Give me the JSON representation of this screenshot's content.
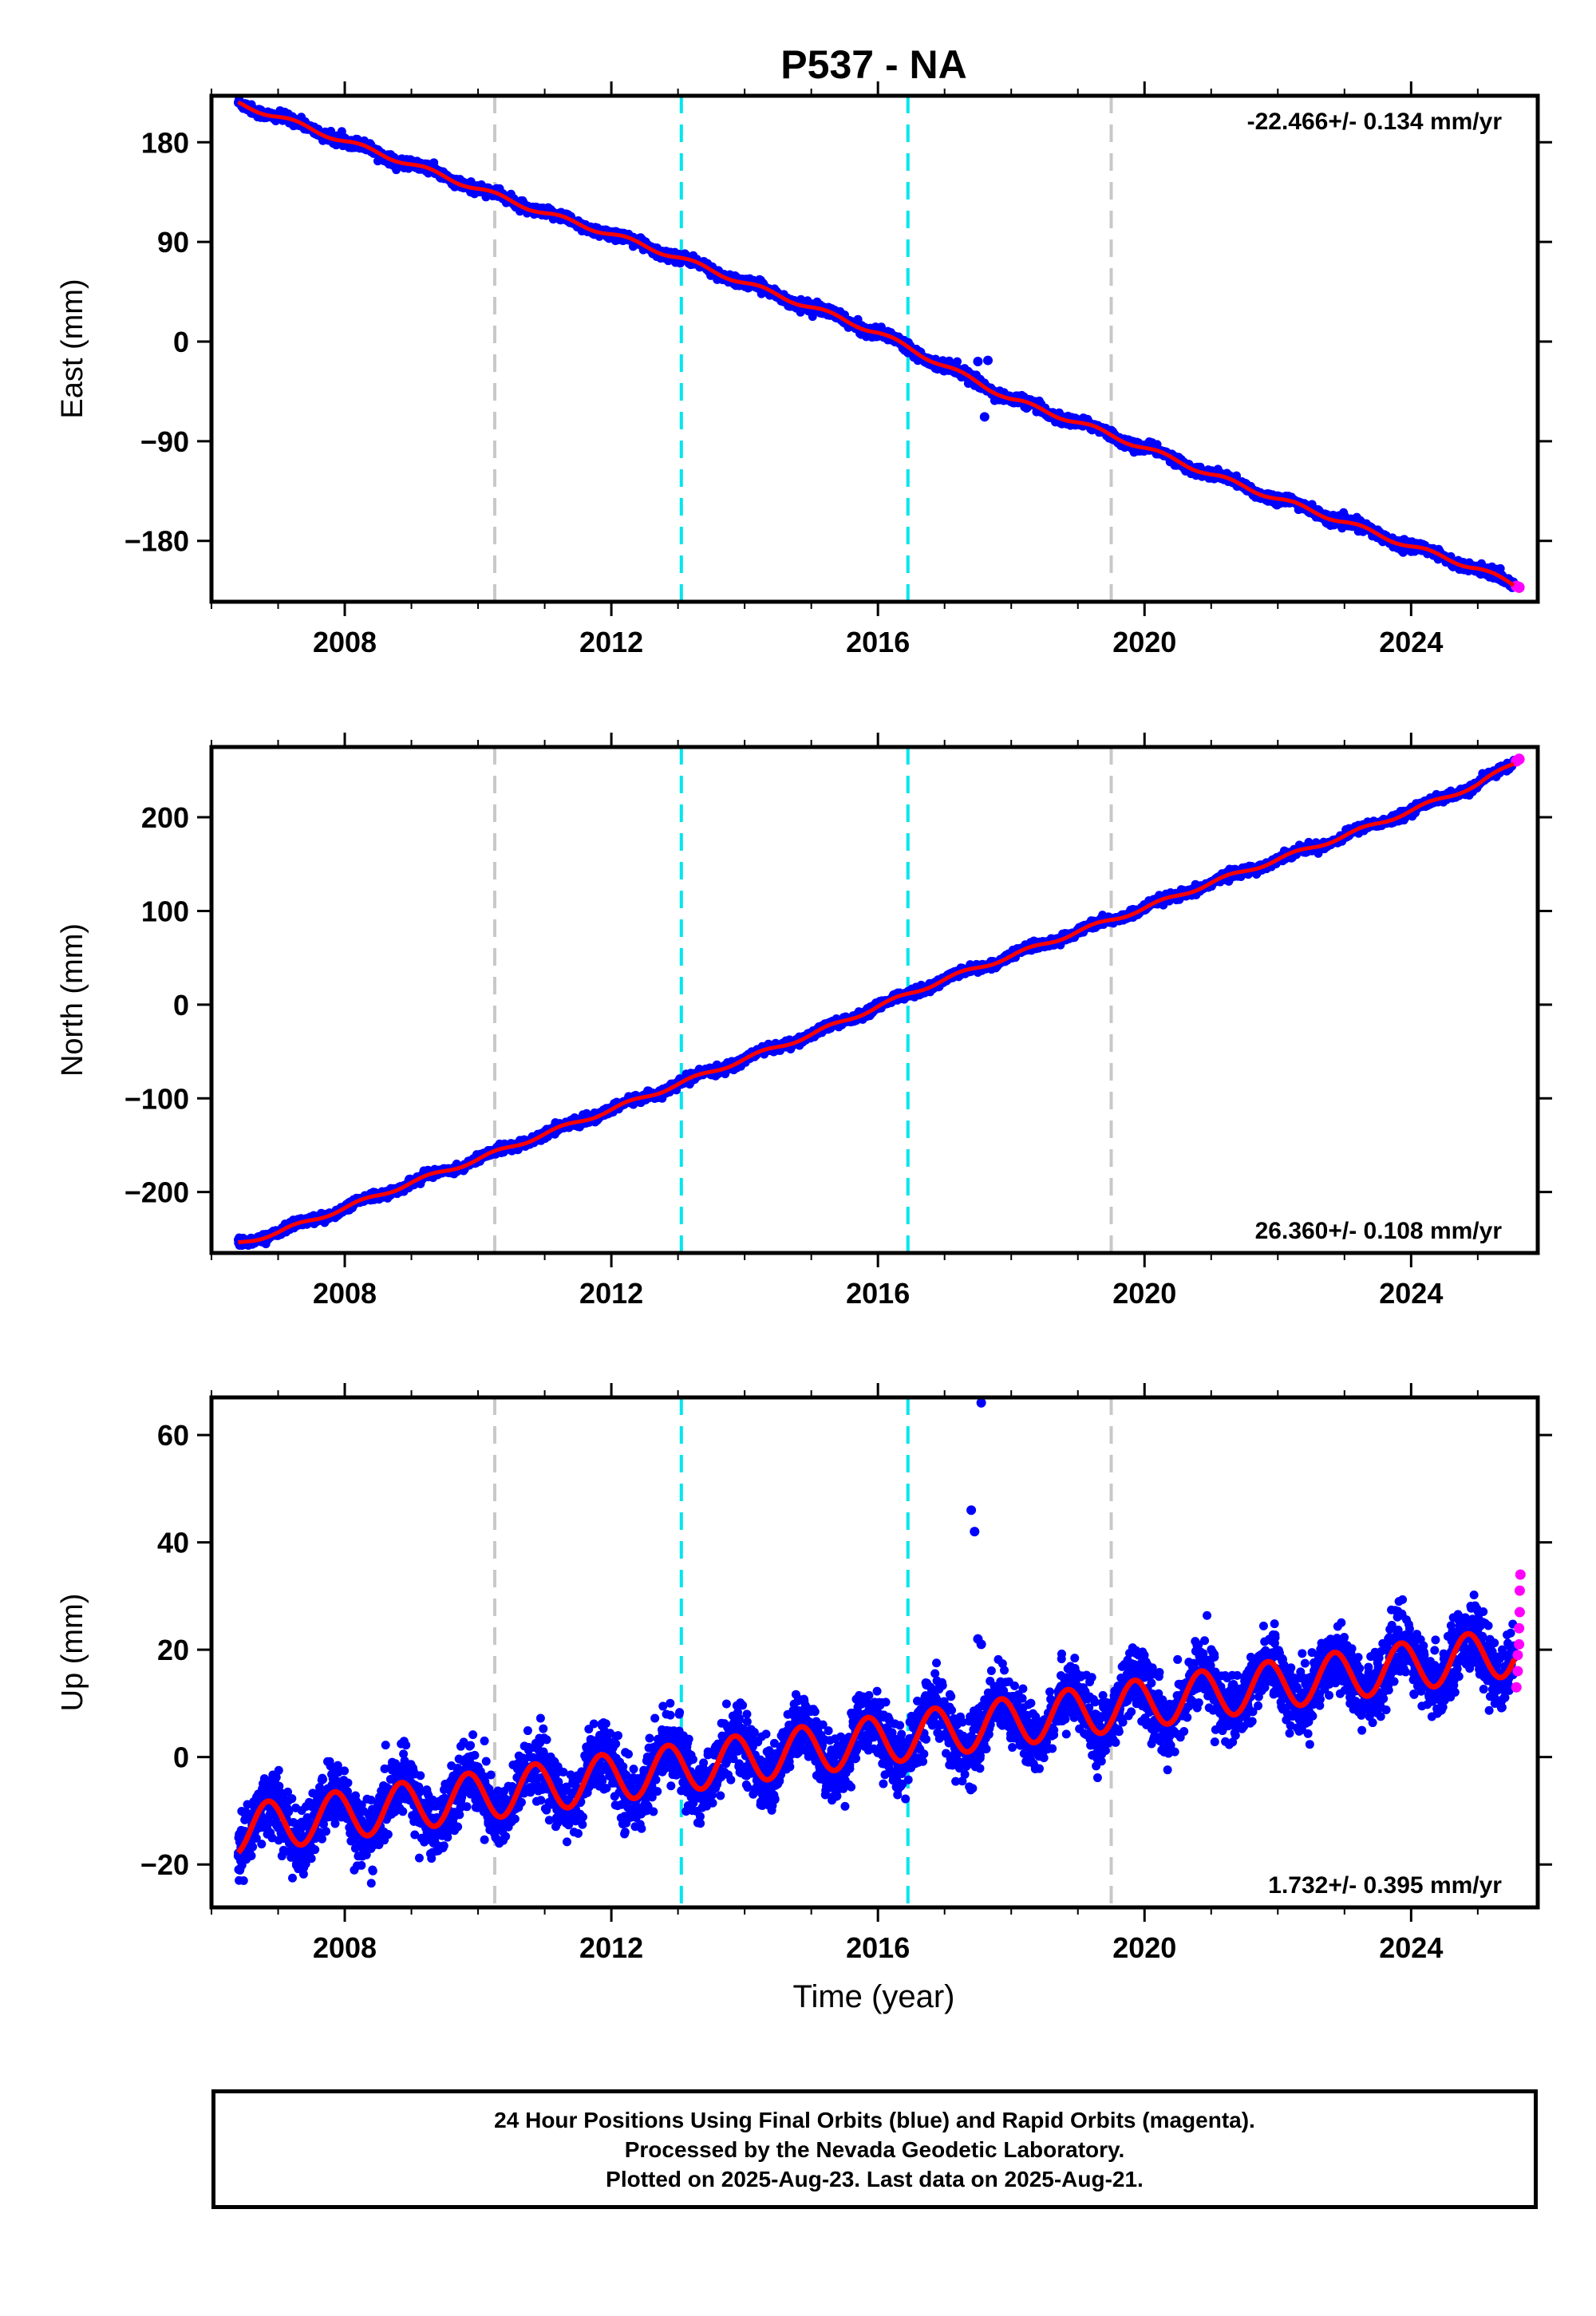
{
  "chart_data": {
    "type": "scatter",
    "title": "P537 - NA",
    "xlabel": "Time (year)",
    "xlim": [
      2006.0,
      2025.9
    ],
    "xticks": [
      2008,
      2012,
      2016,
      2020,
      2024
    ],
    "event_lines": [
      {
        "x": 2010.25,
        "color": "#c8c8c8"
      },
      {
        "x": 2013.05,
        "color": "#00e5ee"
      },
      {
        "x": 2016.45,
        "color": "#00e5ee"
      },
      {
        "x": 2019.5,
        "color": "#c8c8c8"
      }
    ],
    "colors": {
      "final": "#0000ff",
      "rapid": "#ff00ff",
      "model": "#ff0000"
    },
    "panels": [
      {
        "component": "east",
        "ylabel": "East (mm)",
        "ylim": [
          -235,
          222
        ],
        "yticks": [
          180,
          90,
          0,
          -90,
          -180
        ],
        "ytick_labels": [
          "180",
          "90",
          "0",
          "−90",
          "−180"
        ],
        "velocity_label": "-22.466+/- 0.134 mm/yr",
        "velocity_position": "top-right",
        "series": [
          {
            "name": "final",
            "x": [
              2006.4,
              2007,
              2008,
              2009,
              2010,
              2011,
              2012,
              2013,
              2014,
              2015,
              2016,
              2017,
              2018,
              2019,
              2020,
              2021,
              2022,
              2023,
              2024,
              2025,
              2025.55
            ],
            "y": [
              215,
              203,
              181,
              160,
              138,
              116,
              97,
              76,
              53,
              31,
              8,
              -22,
              -52,
              -73,
              -96,
              -120,
              -142,
              -163,
              -185,
              -205,
              -220
            ]
          },
          {
            "name": "rapid",
            "x": [
              2025.58,
              2025.62
            ],
            "y": [
              -221,
              -222
            ]
          }
        ],
        "outliers": [
          {
            "x": 2017.5,
            "y": -18
          },
          {
            "x": 2017.65,
            "y": -17
          },
          {
            "x": 2017.6,
            "y": -68
          }
        ]
      },
      {
        "component": "north",
        "ylabel": "North (mm)",
        "ylim": [
          -265,
          275
        ],
        "yticks": [
          200,
          100,
          0,
          -100,
          -200
        ],
        "ytick_labels": [
          "200",
          "100",
          "0",
          "−100",
          "−200"
        ],
        "velocity_label": "26.360+/- 0.108 mm/yr",
        "velocity_position": "bottom-right",
        "series": [
          {
            "name": "final",
            "x": [
              2006.4,
              2007,
              2008,
              2009,
              2010,
              2011,
              2012,
              2013,
              2014,
              2015,
              2016,
              2017,
              2018,
              2019,
              2020,
              2021,
              2022,
              2023,
              2024,
              2025,
              2025.55
            ],
            "y": [
              -255,
              -243,
              -217,
              -190,
              -165,
              -138,
              -112,
              -85,
              -58,
              -32,
              -2,
              27,
              52,
              78,
              103,
              130,
              155,
              180,
              207,
              235,
              258
            ]
          },
          {
            "name": "rapid",
            "x": [
              2025.58,
              2025.62
            ],
            "y": [
              260,
              262
            ]
          }
        ],
        "outliers": []
      },
      {
        "component": "up",
        "ylabel": "Up (mm)",
        "ylim": [
          -28,
          67
        ],
        "yticks": [
          60,
          40,
          20,
          0,
          -20
        ],
        "ytick_labels": [
          "60",
          "40",
          "20",
          "0",
          "−20"
        ],
        "velocity_label": "1.732+/- 0.395 mm/yr",
        "velocity_position": "bottom-right",
        "trend": {
          "x0": 2006.4,
          "y0": -13.5,
          "rate": 1.732,
          "amplitude": 4.5,
          "phase_year": 0.1
        },
        "model_curve_x": [
          2006.4,
          2025.55
        ],
        "scatter_spread": 5.5,
        "rapid_points": [
          {
            "x": 2025.58,
            "y": 13
          },
          {
            "x": 2025.6,
            "y": 16
          },
          {
            "x": 2025.6,
            "y": 19
          },
          {
            "x": 2025.62,
            "y": 21
          },
          {
            "x": 2025.62,
            "y": 24
          },
          {
            "x": 2025.63,
            "y": 27
          },
          {
            "x": 2025.63,
            "y": 31
          },
          {
            "x": 2025.64,
            "y": 34
          }
        ],
        "outliers": [
          {
            "x": 2017.55,
            "y": 66
          },
          {
            "x": 2017.4,
            "y": 46
          },
          {
            "x": 2017.45,
            "y": 42
          },
          {
            "x": 2017.5,
            "y": 22
          },
          {
            "x": 2017.55,
            "y": 21
          }
        ]
      }
    ]
  },
  "footer": {
    "line1": "24 Hour Positions Using Final Orbits (blue) and Rapid Orbits (magenta).",
    "line2": "Processed by the Nevada Geodetic Laboratory.",
    "line3": "Plotted on 2025-Aug-23. Last data on 2025-Aug-21."
  }
}
